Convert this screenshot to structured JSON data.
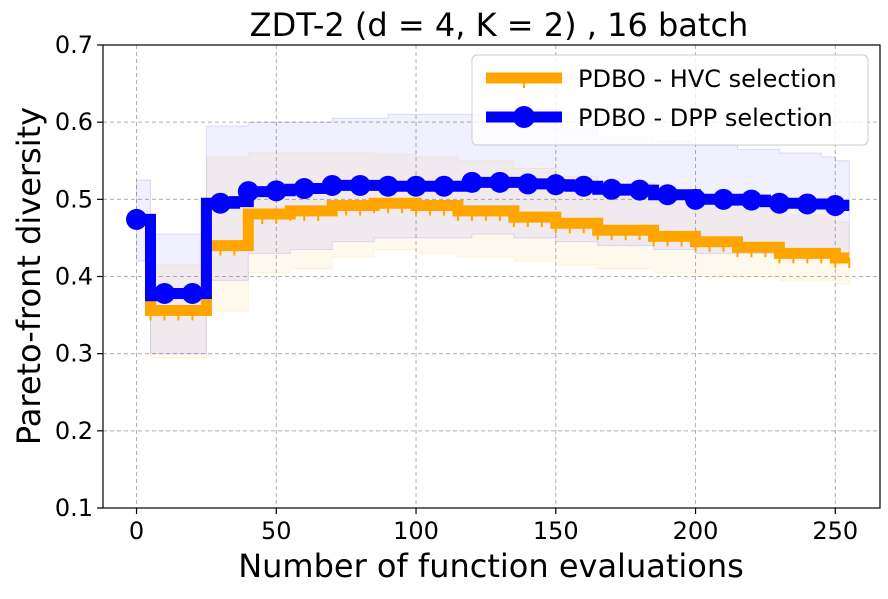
{
  "chart_data": {
    "type": "line",
    "title": "ZDT-2 (d = 4, K = 2) , 16 batch",
    "xlabel": "Number of function evaluations",
    "ylabel": "Pareto-front diversity",
    "xlim": [
      -12,
      266
    ],
    "ylim": [
      0.1,
      0.7
    ],
    "xticks": [
      0,
      50,
      100,
      150,
      200,
      250
    ],
    "xtick_labels": [
      "0",
      "50",
      "100",
      "150",
      "200",
      "250"
    ],
    "yticks": [
      0.1,
      0.2,
      0.3,
      0.4,
      0.5,
      0.6,
      0.7
    ],
    "ytick_labels": [
      "0.1",
      "0.2",
      "0.3",
      "0.4",
      "0.5",
      "0.6",
      "0.7"
    ],
    "grid": true,
    "legend_position": "top-right",
    "step_style": "steps-post",
    "series": [
      {
        "name": "PDBO - HVC selection",
        "color": "#ffa500",
        "marker": "vline",
        "x": [
          0,
          5,
          10,
          15,
          20,
          25,
          30,
          35,
          40,
          45,
          50,
          55,
          60,
          65,
          70,
          75,
          80,
          85,
          90,
          95,
          100,
          105,
          110,
          115,
          120,
          125,
          130,
          135,
          140,
          145,
          150,
          155,
          160,
          165,
          170,
          175,
          180,
          185,
          190,
          195,
          200,
          205,
          210,
          215,
          220,
          225,
          230,
          235,
          240,
          245,
          250,
          255
        ],
        "values": [
          0.474,
          0.356,
          0.356,
          0.356,
          0.356,
          0.44,
          0.44,
          0.44,
          0.481,
          0.481,
          0.481,
          0.485,
          0.485,
          0.485,
          0.492,
          0.492,
          0.492,
          0.495,
          0.495,
          0.495,
          0.492,
          0.492,
          0.492,
          0.485,
          0.485,
          0.485,
          0.485,
          0.477,
          0.477,
          0.477,
          0.469,
          0.469,
          0.469,
          0.46,
          0.46,
          0.46,
          0.46,
          0.452,
          0.452,
          0.452,
          0.445,
          0.445,
          0.445,
          0.438,
          0.438,
          0.438,
          0.43,
          0.43,
          0.43,
          0.43,
          0.424,
          0.424
        ],
        "band_upper": [
          0.474,
          0.415,
          0.415,
          0.415,
          0.415,
          0.555,
          0.555,
          0.555,
          0.56,
          0.56,
          0.56,
          0.56,
          0.56,
          0.56,
          0.56,
          0.56,
          0.56,
          0.558,
          0.558,
          0.558,
          0.555,
          0.555,
          0.555,
          0.55,
          0.55,
          0.55,
          0.55,
          0.54,
          0.54,
          0.54,
          0.53,
          0.53,
          0.53,
          0.52,
          0.52,
          0.52,
          0.52,
          0.51,
          0.51,
          0.51,
          0.5,
          0.5,
          0.5,
          0.49,
          0.49,
          0.49,
          0.48,
          0.48,
          0.48,
          0.48,
          0.47,
          0.47
        ],
        "band_lower": [
          0.474,
          0.295,
          0.295,
          0.295,
          0.295,
          0.355,
          0.355,
          0.355,
          0.405,
          0.405,
          0.405,
          0.41,
          0.41,
          0.41,
          0.425,
          0.425,
          0.425,
          0.435,
          0.435,
          0.435,
          0.43,
          0.43,
          0.43,
          0.425,
          0.425,
          0.425,
          0.425,
          0.42,
          0.42,
          0.42,
          0.415,
          0.415,
          0.415,
          0.41,
          0.41,
          0.41,
          0.41,
          0.405,
          0.405,
          0.405,
          0.4,
          0.4,
          0.4,
          0.4,
          0.4,
          0.4,
          0.395,
          0.395,
          0.395,
          0.395,
          0.39,
          0.39
        ]
      },
      {
        "name": "PDBO - DPP selection",
        "color": "#0000ff",
        "marker": "circle",
        "x": [
          0,
          5,
          10,
          15,
          20,
          25,
          30,
          35,
          40,
          45,
          50,
          55,
          60,
          65,
          70,
          75,
          80,
          85,
          90,
          95,
          100,
          105,
          110,
          115,
          120,
          125,
          130,
          135,
          140,
          145,
          150,
          155,
          160,
          165,
          170,
          175,
          180,
          185,
          190,
          195,
          200,
          205,
          210,
          215,
          220,
          225,
          230,
          235,
          240,
          245,
          250,
          255
        ],
        "values": [
          0.474,
          0.375,
          0.378,
          0.378,
          0.378,
          0.495,
          0.495,
          0.497,
          0.51,
          0.51,
          0.511,
          0.513,
          0.514,
          0.514,
          0.518,
          0.518,
          0.518,
          0.518,
          0.517,
          0.517,
          0.517,
          0.517,
          0.517,
          0.517,
          0.522,
          0.522,
          0.522,
          0.522,
          0.52,
          0.52,
          0.519,
          0.517,
          0.517,
          0.513,
          0.513,
          0.512,
          0.512,
          0.506,
          0.506,
          0.506,
          0.5,
          0.5,
          0.5,
          0.499,
          0.499,
          0.497,
          0.495,
          0.495,
          0.494,
          0.494,
          0.492,
          0.492
        ],
        "band_upper": [
          0.525,
          0.455,
          0.455,
          0.455,
          0.455,
          0.595,
          0.595,
          0.595,
          0.6,
          0.6,
          0.6,
          0.6,
          0.6,
          0.6,
          0.605,
          0.605,
          0.605,
          0.605,
          0.61,
          0.61,
          0.61,
          0.61,
          0.61,
          0.61,
          0.61,
          0.61,
          0.61,
          0.6,
          0.6,
          0.6,
          0.592,
          0.592,
          0.592,
          0.582,
          0.582,
          0.582,
          0.582,
          0.575,
          0.575,
          0.575,
          0.57,
          0.57,
          0.57,
          0.565,
          0.565,
          0.565,
          0.56,
          0.56,
          0.56,
          0.555,
          0.55,
          0.55
        ],
        "band_lower": [
          0.42,
          0.3,
          0.3,
          0.3,
          0.3,
          0.395,
          0.395,
          0.395,
          0.43,
          0.43,
          0.43,
          0.435,
          0.435,
          0.435,
          0.445,
          0.445,
          0.445,
          0.45,
          0.45,
          0.45,
          0.45,
          0.45,
          0.45,
          0.45,
          0.455,
          0.455,
          0.455,
          0.45,
          0.45,
          0.45,
          0.445,
          0.445,
          0.445,
          0.44,
          0.44,
          0.44,
          0.44,
          0.435,
          0.435,
          0.435,
          0.43,
          0.43,
          0.43,
          0.43,
          0.43,
          0.43,
          0.43,
          0.43,
          0.43,
          0.43,
          0.43,
          0.43
        ]
      }
    ]
  }
}
